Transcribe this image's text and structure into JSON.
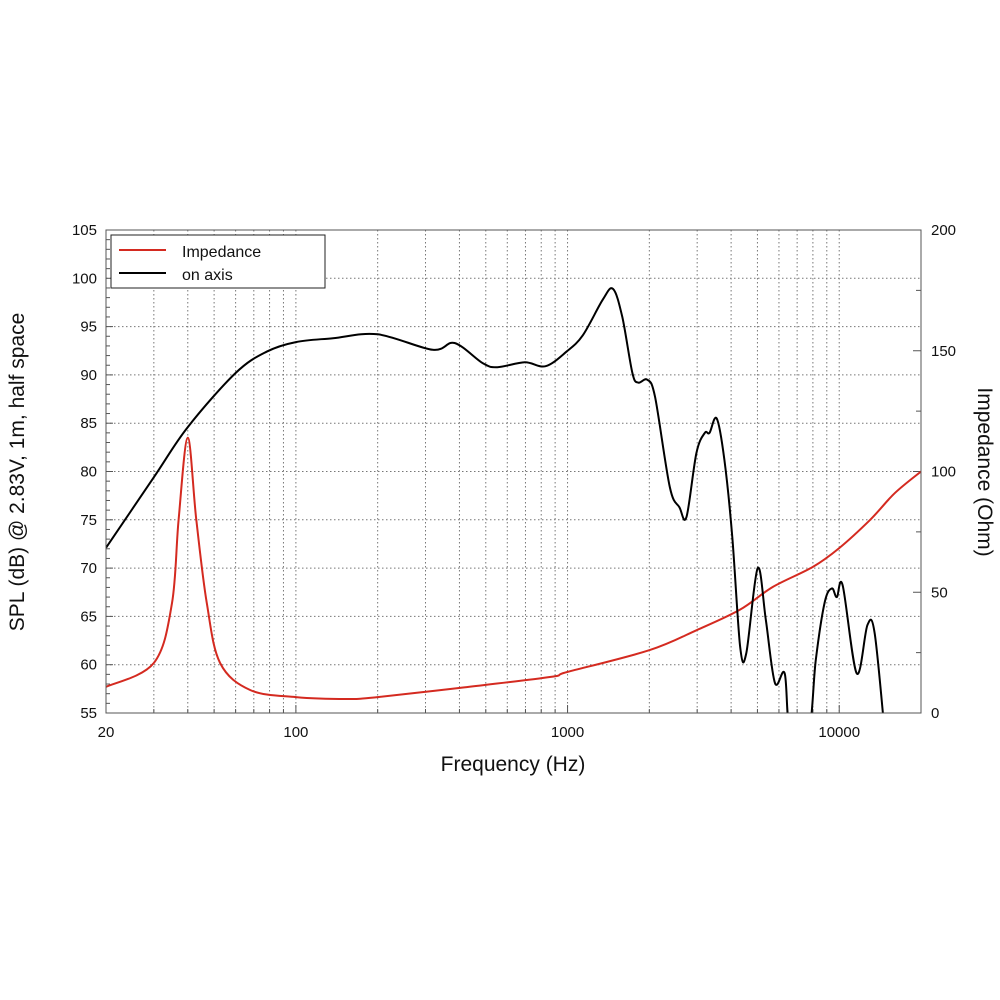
{
  "chart_data": {
    "type": "line",
    "title": "",
    "xlabel": "Frequency (Hz)",
    "ylabel": "SPL (dB) @ 2.83V, 1m, half space",
    "y2label": "Impedance (Ohm)",
    "xscale": "log",
    "xlim": [
      20,
      20000
    ],
    "ylim": [
      55,
      105
    ],
    "y2lim": [
      0,
      200
    ],
    "x_ticks": [
      20,
      100,
      1000,
      10000
    ],
    "x_tick_labels": [
      "20",
      "100",
      "1000",
      "10000"
    ],
    "y_ticks": [
      55,
      60,
      65,
      70,
      75,
      80,
      85,
      90,
      95,
      100,
      105
    ],
    "y2_ticks": [
      0,
      50,
      100,
      150,
      200
    ],
    "grid": true,
    "legend_position": "top-left",
    "series": [
      {
        "name": "Impedance",
        "axis": "right",
        "color": "#d42a20",
        "x": [
          20,
          30,
          35,
          37,
          40,
          43,
          47,
          52.6,
          68,
          100,
          154,
          200,
          402,
          860,
          1000,
          2000,
          3000,
          4300,
          5700,
          8000,
          10000,
          13000,
          16000,
          20000
        ],
        "y": [
          10.8,
          20.7,
          45.5,
          80,
          114,
          80,
          45.5,
          20.7,
          9.5,
          6.6,
          5.8,
          6.6,
          10.4,
          14.9,
          17,
          26,
          34.4,
          42.7,
          52.2,
          60.5,
          68.3,
          80,
          91,
          100
        ]
      },
      {
        "name": "on axis",
        "axis": "left",
        "color": "#000000",
        "x": [
          20,
          30,
          40,
          60,
          78,
          100,
          137,
          200,
          319,
          384,
          488,
          552,
          696,
          830,
          990,
          1138,
          1348,
          1470,
          1590,
          1732,
          1820,
          1966,
          2100,
          2378,
          2580,
          2740,
          2980,
          3200,
          3330,
          3540,
          3780,
          4040,
          4320,
          4550,
          5010,
          5370,
          5800,
          6300,
          6600,
          7700,
          8200,
          8850,
          9400,
          9800,
          10300,
          11600,
          12700,
          13500,
          14700
        ],
        "y": [
          72.1,
          79.4,
          84.6,
          90.2,
          92.4,
          93.4,
          93.8,
          94.2,
          92.6,
          93.3,
          91.2,
          90.8,
          91.3,
          90.9,
          92.4,
          94.1,
          97.8,
          98.9,
          96.0,
          90.2,
          89.2,
          89.5,
          87.7,
          78.4,
          76.3,
          75.3,
          81.9,
          84.0,
          84.0,
          85.5,
          81.2,
          73.2,
          61.8,
          61.2,
          70.0,
          64.6,
          58.1,
          59.1,
          53,
          53,
          60.5,
          66.5,
          67.9,
          67.0,
          68.2,
          59.1,
          64.1,
          63.3,
          53
        ]
      }
    ]
  }
}
